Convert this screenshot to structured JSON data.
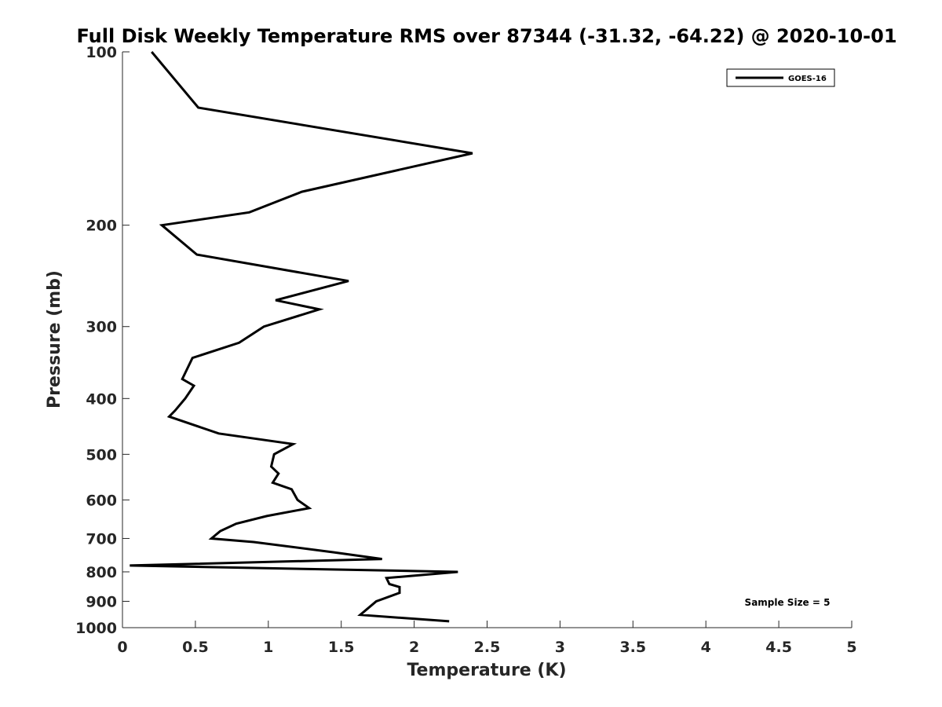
{
  "chart_data": {
    "type": "line",
    "title": "Full Disk Weekly Temperature RMS over 87344 (-31.32, -64.22) @ 2020-10-01",
    "xlabel": "Temperature (K)",
    "ylabel": "Pressure (mb)",
    "xlim": [
      0,
      5
    ],
    "ylim": [
      100,
      1000
    ],
    "yscale": "log",
    "yreversed": true,
    "xticks": [
      "0",
      "0.5",
      "1",
      "1.5",
      "2",
      "2.5",
      "3",
      "3.5",
      "4",
      "4.5",
      "5"
    ],
    "yticks": [
      "100",
      "200",
      "300",
      "400",
      "500",
      "600",
      "700",
      "800",
      "900",
      "1000"
    ],
    "grid": false,
    "legend_position": "top-right",
    "annotation": "Sample Size = 5",
    "series": [
      {
        "name": "GOES-16",
        "color": "#000000",
        "points": [
          [
            0.2,
            100
          ],
          [
            0.52,
            125
          ],
          [
            2.4,
            150
          ],
          [
            1.23,
            175
          ],
          [
            0.87,
            190
          ],
          [
            0.27,
            200
          ],
          [
            0.51,
            225
          ],
          [
            1.55,
            250
          ],
          [
            1.05,
            270
          ],
          [
            1.35,
            280
          ],
          [
            0.97,
            300
          ],
          [
            0.8,
            320
          ],
          [
            0.48,
            340
          ],
          [
            0.41,
            370
          ],
          [
            0.49,
            380
          ],
          [
            0.43,
            400
          ],
          [
            0.36,
            420
          ],
          [
            0.32,
            430
          ],
          [
            0.66,
            460
          ],
          [
            1.17,
            480
          ],
          [
            1.04,
            500
          ],
          [
            1.02,
            525
          ],
          [
            1.07,
            540
          ],
          [
            1.03,
            560
          ],
          [
            1.16,
            575
          ],
          [
            1.2,
            600
          ],
          [
            1.28,
            620
          ],
          [
            0.99,
            640
          ],
          [
            0.78,
            660
          ],
          [
            0.67,
            680
          ],
          [
            0.61,
            700
          ],
          [
            0.9,
            710
          ],
          [
            1.45,
            740
          ],
          [
            1.78,
            760
          ],
          [
            0.05,
            780
          ],
          [
            2.3,
            800
          ],
          [
            1.81,
            820
          ],
          [
            1.83,
            840
          ],
          [
            1.9,
            850
          ],
          [
            1.9,
            870
          ],
          [
            1.74,
            900
          ],
          [
            1.63,
            950
          ],
          [
            2.24,
            975
          ]
        ]
      }
    ]
  }
}
